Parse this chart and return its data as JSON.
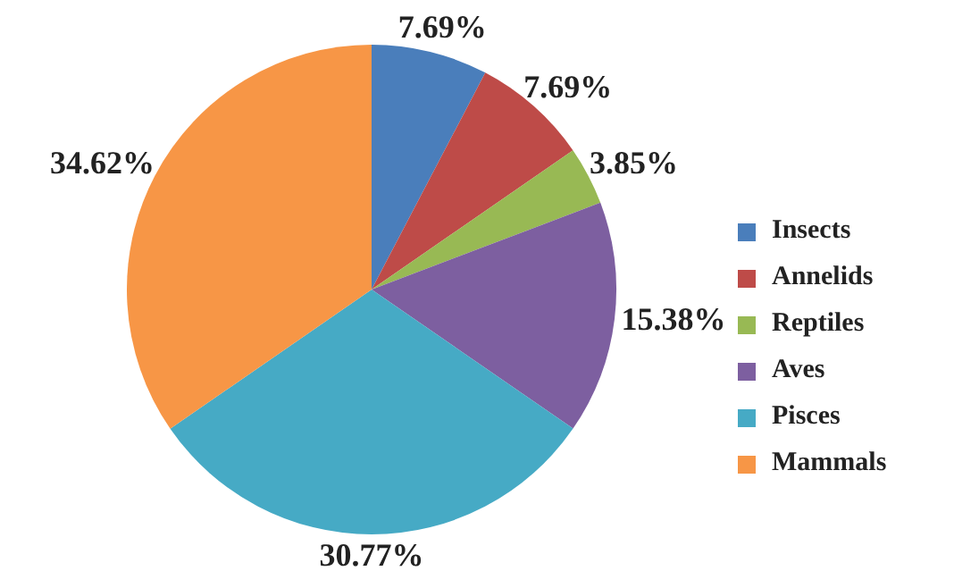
{
  "chart_data": {
    "type": "pie",
    "categories": [
      "Insects",
      "Annelids",
      "Reptiles",
      "Aves",
      "Pisces",
      "Mammals"
    ],
    "values": [
      7.69,
      7.69,
      3.85,
      15.38,
      30.77,
      34.62
    ],
    "value_labels": [
      "7.69%",
      "7.69%",
      "3.85%",
      "15.38%",
      "30.77%",
      "34.62%"
    ],
    "colors": [
      "#4a7ebb",
      "#be4b48",
      "#98b954",
      "#7d5fa0",
      "#46aac5",
      "#f79646"
    ],
    "legend": "right"
  }
}
